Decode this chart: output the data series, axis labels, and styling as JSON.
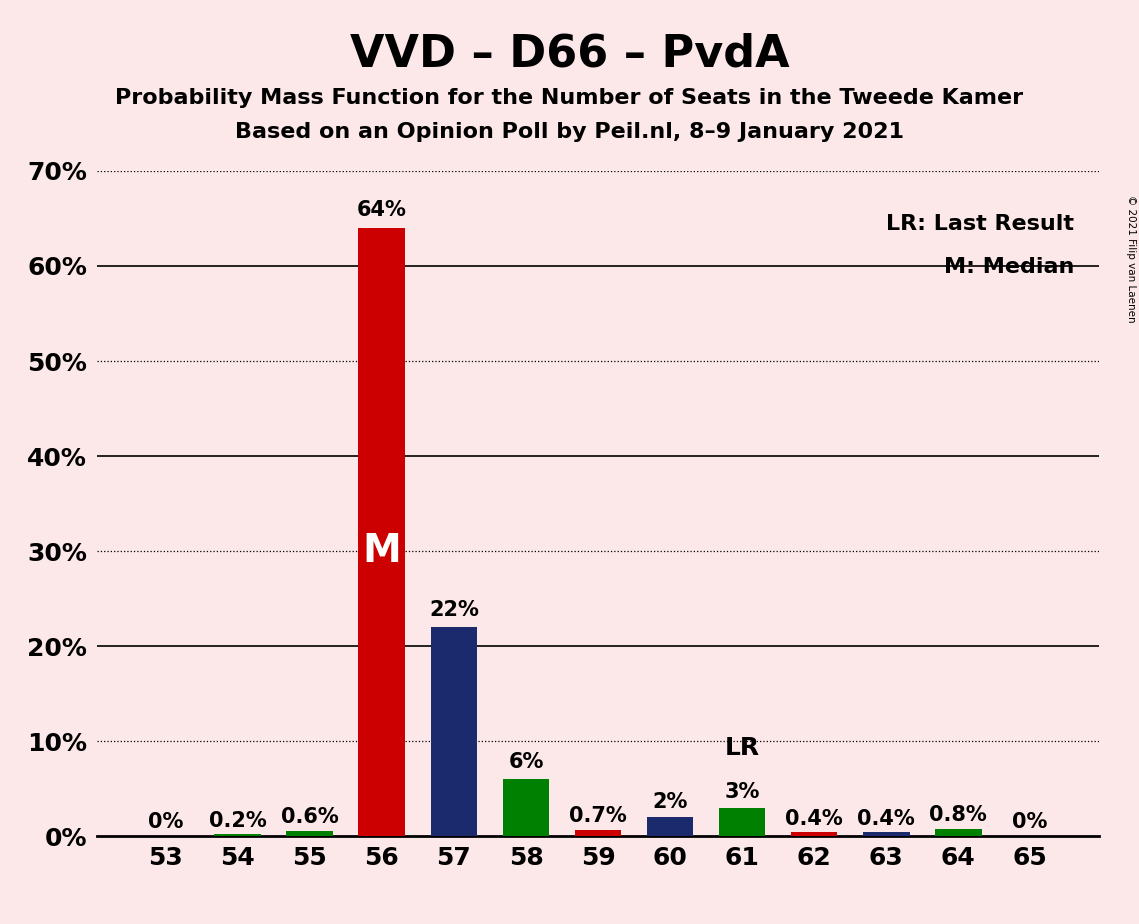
{
  "title": "VVD – D66 – PvdA",
  "subtitle1": "Probability Mass Function for the Number of Seats in the Tweede Kamer",
  "subtitle2": "Based on an Opinion Poll by Peil.nl, 8–9 January 2021",
  "copyright": "© 2021 Filip van Laenen",
  "legend_lr": "LR: Last Result",
  "legend_m": "M: Median",
  "seats": [
    53,
    54,
    55,
    56,
    57,
    58,
    59,
    60,
    61,
    62,
    63,
    64,
    65
  ],
  "values": [
    0.0,
    0.2,
    0.6,
    64.0,
    22.0,
    6.0,
    0.7,
    2.0,
    3.0,
    0.4,
    0.4,
    0.8,
    0.0
  ],
  "bar_colors": [
    "#cc0000",
    "#008000",
    "#008000",
    "#cc0000",
    "#1a2a6c",
    "#008000",
    "#cc0000",
    "#1a2a6c",
    "#008000",
    "#cc0000",
    "#1a2a6c",
    "#008000",
    "#cc0000"
  ],
  "value_labels": [
    "0%",
    "0.2%",
    "0.6%",
    "64%",
    "22%",
    "6%",
    "0.7%",
    "2%",
    "3%",
    "0.4%",
    "0.4%",
    "0.8%",
    "0%"
  ],
  "median_seat": 56,
  "lr_seat": 61,
  "background_color": "#fce8e8",
  "ylim": [
    0,
    70
  ],
  "yticks": [
    0,
    10,
    20,
    30,
    40,
    50,
    60,
    70
  ],
  "ytick_labels": [
    "0%",
    "10%",
    "20%",
    "30%",
    "40%",
    "50%",
    "60%",
    "70%"
  ],
  "solid_gridlines": [
    20,
    40,
    60
  ],
  "dotted_gridlines": [
    10,
    30,
    50,
    70
  ],
  "title_fontsize": 32,
  "subtitle_fontsize": 16,
  "axis_label_fontsize": 18,
  "bar_label_fontsize": 15,
  "m_label_fontsize": 28,
  "lr_label_fontsize": 18,
  "legend_fontsize": 16
}
